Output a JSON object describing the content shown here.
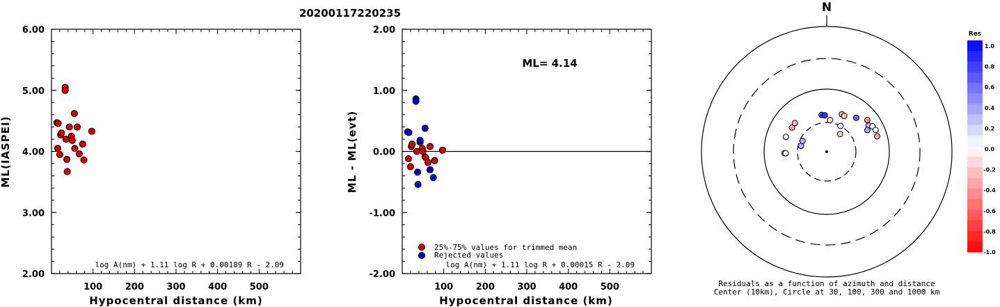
{
  "title": "20200117220235",
  "chart_data": [
    {
      "type": "scatter",
      "ylabel": "ML(IASPEI)",
      "xlabel": "Hypocentral distance (km)",
      "xlim": [
        0,
        600
      ],
      "ylim": [
        2.0,
        6.0
      ],
      "x_ticks": [
        "100",
        "200",
        "300",
        "400",
        "500"
      ],
      "y_ticks": [
        "2.00",
        "3.00",
        "4.00",
        "5.00",
        "6.00"
      ],
      "formula": "log A(nm) + 1.11 log R + 0.00189 R - 2.09",
      "series": [
        {
          "color": "#dd0000",
          "points": [
            [
              13,
              4.47
            ],
            [
              16,
              4.46
            ],
            [
              15,
              4.05
            ],
            [
              20,
              3.95
            ],
            [
              22,
              4.27
            ],
            [
              24,
              4.3
            ],
            [
              33,
              5.05
            ],
            [
              33,
              5.0
            ],
            [
              35,
              4.2
            ],
            [
              37,
              3.87
            ],
            [
              38,
              3.67
            ],
            [
              43,
              4.4
            ],
            [
              48,
              4.25
            ],
            [
              50,
              4.18
            ],
            [
              55,
              4.62
            ],
            [
              56,
              4.05
            ],
            [
              62,
              4.4
            ],
            [
              67,
              3.96
            ],
            [
              75,
              4.12
            ],
            [
              78,
              3.86
            ],
            [
              97,
              4.33
            ]
          ]
        }
      ]
    },
    {
      "type": "scatter",
      "ylabel": "ML - ML(evt)",
      "xlabel": "Hypocentral distance (km)",
      "xlim": [
        0,
        600
      ],
      "ylim": [
        -2.0,
        2.0
      ],
      "x_ticks": [
        "100",
        "200",
        "300",
        "400",
        "500"
      ],
      "y_ticks": [
        "-2.00",
        "-1.00",
        "0.00",
        "1.00",
        "2.00"
      ],
      "annotation": "ML= 4.14",
      "formula": "log A(nm) + 1.11 log R + 0.00015 R - 2.09",
      "zero_line": true,
      "legend": [
        "25%-75% values for trimmed mean",
        "Rejected values"
      ],
      "series": [
        {
          "name": "25%-75% values for trimmed mean",
          "color": "#dd0000",
          "points": [
            [
              15,
              -0.12
            ],
            [
              20,
              -0.25
            ],
            [
              22,
              0.08
            ],
            [
              24,
              0.12
            ],
            [
              35,
              0.0
            ],
            [
              43,
              0.15
            ],
            [
              48,
              0.05
            ],
            [
              50,
              0.0
            ],
            [
              55,
              -0.09
            ],
            [
              56,
              -0.1
            ],
            [
              62,
              -0.18
            ],
            [
              67,
              0.08
            ],
            [
              78,
              -0.15
            ],
            [
              97,
              0.02
            ]
          ]
        },
        {
          "name": "Rejected values",
          "color": "#0000cc",
          "points": [
            [
              13,
              0.32
            ],
            [
              16,
              0.31
            ],
            [
              33,
              0.86
            ],
            [
              33,
              0.82
            ],
            [
              37,
              -0.34
            ],
            [
              38,
              -0.54
            ],
            [
              43,
              0.18
            ],
            [
              55,
              0.38
            ],
            [
              67,
              -0.3
            ],
            [
              75,
              -0.43
            ]
          ]
        }
      ]
    },
    {
      "type": "polar",
      "north_label": "N",
      "caption_line1": "Residuals as a function of azimuth and distance",
      "caption_line2": "Center (10km), Circle at 30, 100, 300 and 1000 km",
      "colorbar_title": "Res",
      "colorbar_ticks": [
        "1.0",
        "0.8",
        "0.6",
        "0.4",
        "0.2",
        "0.0",
        "-0.2",
        "-0.4",
        "-0.6",
        "-0.8",
        "-1.0"
      ],
      "rings_km": [
        30,
        100,
        300,
        1000
      ],
      "residuals": [
        {
          "az": 305,
          "dist": 48,
          "res": -0.35
        },
        {
          "az": 312,
          "dist": 49,
          "res": -0.3
        },
        {
          "az": 290,
          "dist": 50,
          "res": 0.05
        },
        {
          "az": 268,
          "dist": 48,
          "res": -0.4
        },
        {
          "az": 268,
          "dist": 46,
          "res": 0.02
        },
        {
          "az": 283,
          "dist": 27,
          "res": 0.3
        },
        {
          "az": 294,
          "dist": 27,
          "res": 0.3
        },
        {
          "az": 352,
          "dist": 40,
          "res": 0.75
        },
        {
          "az": 357,
          "dist": 39,
          "res": 0.8
        },
        {
          "az": 6,
          "dist": 33,
          "res": -0.1
        },
        {
          "az": 22,
          "dist": 45,
          "res": -0.3
        },
        {
          "az": 26,
          "dist": 44,
          "res": -0.25
        },
        {
          "az": 28,
          "dist": 30,
          "res": 0.05
        },
        {
          "az": 37,
          "dist": 23,
          "res": -0.2
        },
        {
          "az": 41,
          "dist": 53,
          "res": 0.6
        },
        {
          "az": 52,
          "dist": 67,
          "res": -0.45
        },
        {
          "az": 58,
          "dist": 62,
          "res": 0.3
        },
        {
          "az": 62,
          "dist": 55,
          "res": 0.35
        },
        {
          "az": 61,
          "dist": 69,
          "res": 0.0
        },
        {
          "az": 66,
          "dist": 72,
          "res": 0.0
        },
        {
          "az": 73,
          "dist": 70,
          "res": -0.35
        }
      ]
    }
  ]
}
